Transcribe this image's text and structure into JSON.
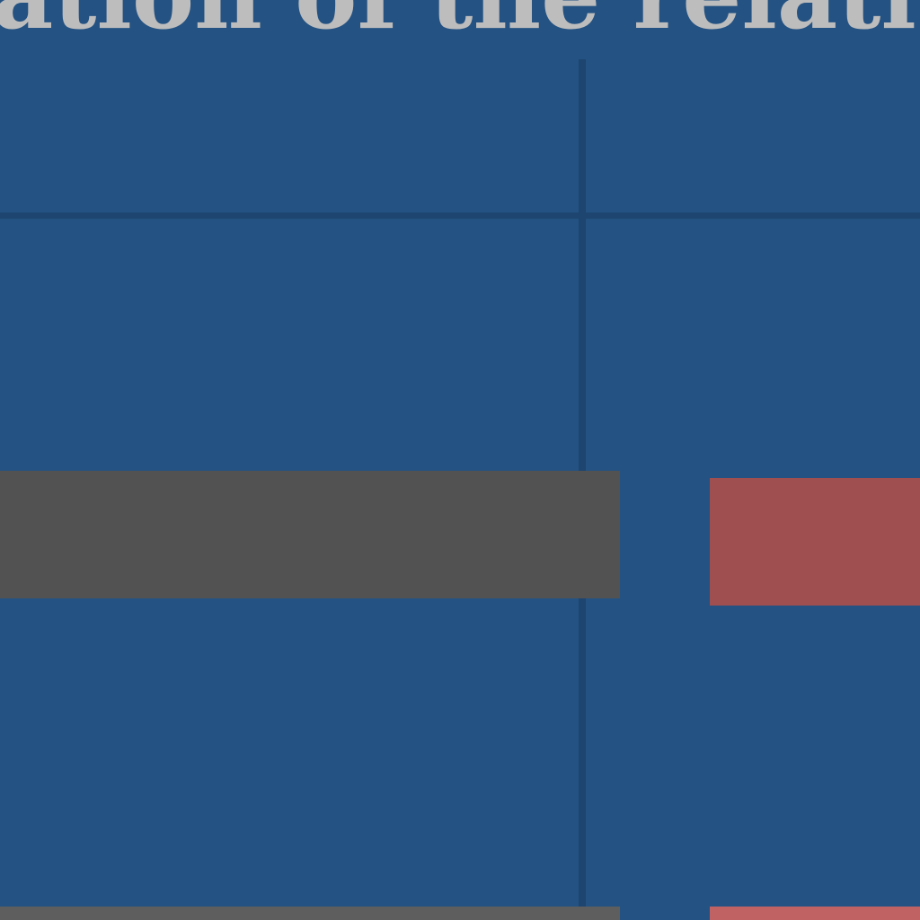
{
  "chart_data": {
    "type": "bar",
    "title": "ation of the relativ",
    "series": [
      {
        "color": "#525252"
      },
      {
        "color": "#a04f51"
      }
    ],
    "grid": true
  },
  "colors": {
    "background": "#245282",
    "grid": "#1d4570",
    "title_text": "#bdbdbd",
    "bar_gray": "#525252",
    "bar_red": "#a04f51",
    "bar_red_light": "#c06264",
    "bar_gray_light": "#5e5e5e"
  }
}
